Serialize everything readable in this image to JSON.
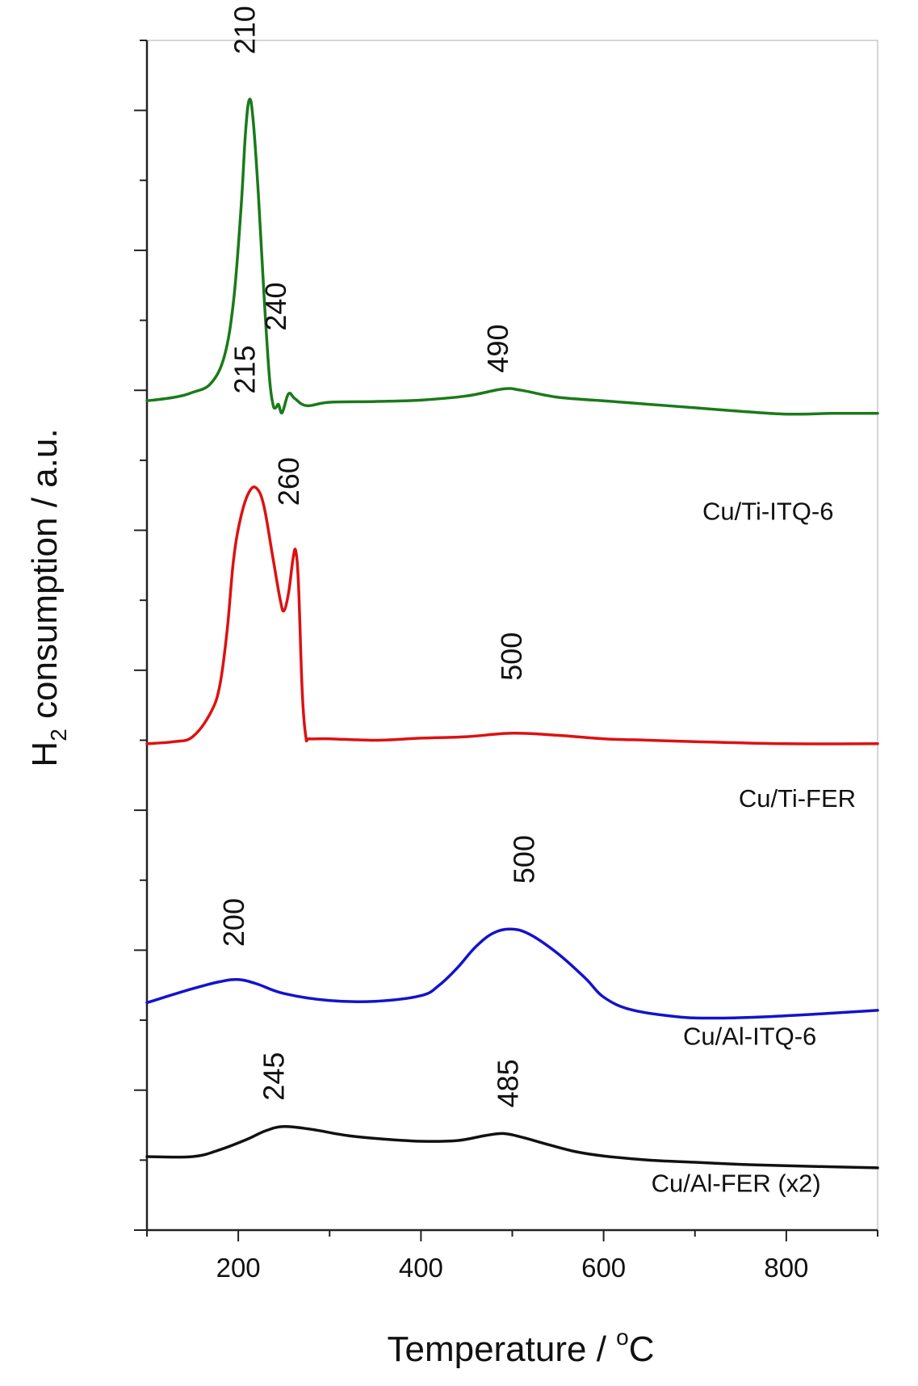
{
  "chart_data": {
    "type": "line",
    "title": "",
    "xlabel": {
      "base": "Temperature / ",
      "sup": "o",
      "suffix": "C"
    },
    "ylabel": {
      "prefix": "H",
      "sub": "2",
      "suffix": " consumption / a.u."
    },
    "xlim": [
      100,
      900
    ],
    "xticks": [
      200,
      400,
      600,
      800
    ],
    "xminor": [
      100,
      300,
      500,
      700,
      900
    ],
    "ylim": [
      0,
      17
    ],
    "yticks": [
      0,
      1,
      2,
      3,
      4,
      5,
      6,
      7,
      8,
      9,
      10,
      11,
      12,
      13,
      14,
      15,
      16,
      17
    ],
    "grid": false,
    "series": [
      {
        "name": "Cu/Ti-ITQ-6",
        "color": "#1a7a1a",
        "label_at": [
          780,
          10.15
        ],
        "points": [
          [
            100,
            11.85
          ],
          [
            130,
            11.9
          ],
          [
            150,
            11.97
          ],
          [
            170,
            12.1
          ],
          [
            185,
            12.5
          ],
          [
            195,
            13.3
          ],
          [
            203,
            14.6
          ],
          [
            208,
            15.7
          ],
          [
            212,
            16.15
          ],
          [
            216,
            15.9
          ],
          [
            222,
            14.8
          ],
          [
            228,
            13.4
          ],
          [
            234,
            12.2
          ],
          [
            238,
            11.8
          ],
          [
            241,
            11.75
          ],
          [
            244,
            11.8
          ],
          [
            248,
            11.68
          ],
          [
            255,
            11.95
          ],
          [
            262,
            11.88
          ],
          [
            275,
            11.78
          ],
          [
            300,
            11.83
          ],
          [
            350,
            11.84
          ],
          [
            400,
            11.86
          ],
          [
            450,
            11.92
          ],
          [
            490,
            12.02
          ],
          [
            510,
            12.0
          ],
          [
            550,
            11.9
          ],
          [
            600,
            11.85
          ],
          [
            650,
            11.8
          ],
          [
            700,
            11.75
          ],
          [
            750,
            11.7
          ],
          [
            800,
            11.66
          ],
          [
            850,
            11.67
          ],
          [
            900,
            11.67
          ]
        ],
        "peaks": [
          {
            "x": 210,
            "label": "210",
            "at": [
              218,
              16.8
            ]
          },
          {
            "x": 240,
            "label": "240",
            "at": [
              252,
              12.85
            ]
          },
          {
            "x": 490,
            "label": "490",
            "at": [
              495,
              12.25
            ]
          }
        ]
      },
      {
        "name": "Cu/Ti-FER",
        "color": "#dd1111",
        "label_at": [
          812,
          6.05
        ],
        "points": [
          [
            100,
            6.95
          ],
          [
            130,
            6.98
          ],
          [
            150,
            7.05
          ],
          [
            170,
            7.4
          ],
          [
            180,
            7.8
          ],
          [
            188,
            8.6
          ],
          [
            195,
            9.6
          ],
          [
            203,
            10.2
          ],
          [
            212,
            10.55
          ],
          [
            220,
            10.6
          ],
          [
            228,
            10.35
          ],
          [
            238,
            9.6
          ],
          [
            246,
            9.0
          ],
          [
            250,
            8.85
          ],
          [
            255,
            9.1
          ],
          [
            260,
            9.6
          ],
          [
            263,
            9.7
          ],
          [
            266,
            9.2
          ],
          [
            270,
            7.7
          ],
          [
            274,
            7.05
          ],
          [
            278,
            7.02
          ],
          [
            300,
            7.02
          ],
          [
            350,
            7.0
          ],
          [
            400,
            7.03
          ],
          [
            450,
            7.05
          ],
          [
            500,
            7.1
          ],
          [
            550,
            7.07
          ],
          [
            600,
            7.02
          ],
          [
            650,
            7.0
          ],
          [
            700,
            6.98
          ],
          [
            800,
            6.95
          ],
          [
            900,
            6.95
          ]
        ],
        "peaks": [
          {
            "x": 215,
            "label": "215",
            "at": [
              218,
              11.95
            ]
          },
          {
            "x": 260,
            "label": "260",
            "at": [
              266,
              10.35
            ]
          },
          {
            "x": 500,
            "label": "500",
            "at": [
              510,
              7.85
            ]
          }
        ]
      },
      {
        "name": "Cu/Al-ITQ-6",
        "color": "#1313cc",
        "label_at": [
          760,
          2.65
        ],
        "points": [
          [
            100,
            3.25
          ],
          [
            150,
            3.45
          ],
          [
            180,
            3.55
          ],
          [
            200,
            3.58
          ],
          [
            220,
            3.52
          ],
          [
            250,
            3.38
          ],
          [
            300,
            3.28
          ],
          [
            350,
            3.27
          ],
          [
            400,
            3.35
          ],
          [
            420,
            3.5
          ],
          [
            440,
            3.75
          ],
          [
            460,
            4.05
          ],
          [
            480,
            4.25
          ],
          [
            500,
            4.3
          ],
          [
            520,
            4.22
          ],
          [
            550,
            3.95
          ],
          [
            580,
            3.6
          ],
          [
            600,
            3.33
          ],
          [
            630,
            3.15
          ],
          [
            680,
            3.05
          ],
          [
            720,
            3.03
          ],
          [
            780,
            3.05
          ],
          [
            850,
            3.1
          ],
          [
            900,
            3.14
          ]
        ],
        "peaks": [
          {
            "x": 200,
            "label": "200",
            "at": [
              206,
              4.05
            ]
          },
          {
            "x": 500,
            "label": "500",
            "at": [
              524,
              4.95
            ]
          }
        ]
      },
      {
        "name": "Cu/Al-FER (x2)",
        "color": "#111111",
        "label_at": [
          745,
          0.55
        ],
        "points": [
          [
            100,
            1.05
          ],
          [
            150,
            1.05
          ],
          [
            180,
            1.15
          ],
          [
            210,
            1.3
          ],
          [
            230,
            1.42
          ],
          [
            250,
            1.48
          ],
          [
            280,
            1.44
          ],
          [
            320,
            1.35
          ],
          [
            360,
            1.3
          ],
          [
            400,
            1.27
          ],
          [
            440,
            1.28
          ],
          [
            470,
            1.35
          ],
          [
            490,
            1.38
          ],
          [
            510,
            1.33
          ],
          [
            540,
            1.22
          ],
          [
            570,
            1.12
          ],
          [
            600,
            1.06
          ],
          [
            650,
            1.0
          ],
          [
            700,
            0.97
          ],
          [
            750,
            0.94
          ],
          [
            800,
            0.92
          ],
          [
            900,
            0.89
          ]
        ],
        "peaks": [
          {
            "x": 245,
            "label": "245",
            "at": [
              250,
              1.85
            ]
          },
          {
            "x": 485,
            "label": "485",
            "at": [
              506,
              1.75
            ]
          }
        ]
      }
    ]
  }
}
